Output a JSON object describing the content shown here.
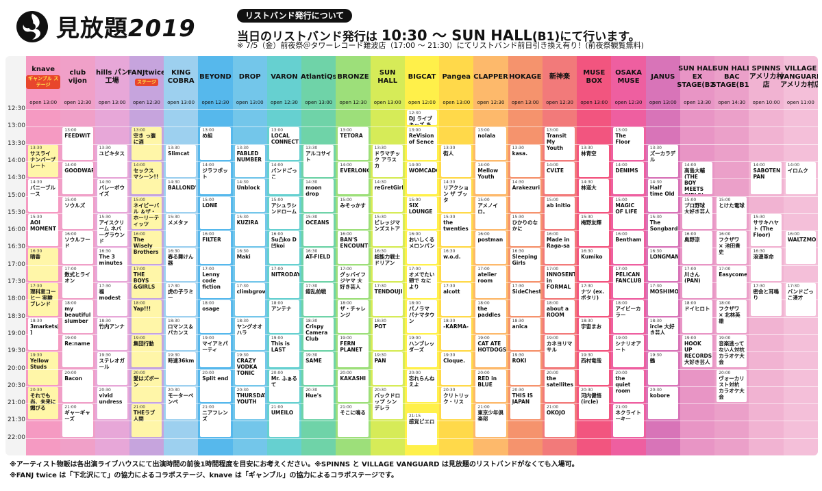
{
  "header": {
    "title_main": "見放題",
    "title_year": "2019",
    "notice_label": "リストバンド発行について",
    "notice_main_1": "当日のリストバンド発行は",
    "notice_main_time": "10:30 〜 SUN HALL",
    "notice_main_2": "(B1)にて行います。",
    "notice_sub": "※ 7/5（金）前夜祭＠タワーレコード難波店（17:00 〜 21:30）にてリストバンド前日引き換え有り！(前夜祭観覧無料)"
  },
  "time_labels": [
    "12:30",
    "13:00",
    "13:30",
    "14:00",
    "14:30",
    "15:00",
    "15:30",
    "16:00",
    "16:30",
    "17:00",
    "17:30",
    "18:00",
    "18:30",
    "19:00",
    "19:30",
    "20:00",
    "20:30",
    "21:00",
    "21:30",
    "22:00"
  ],
  "colors": {
    "knave": "#f59ac2",
    "club_vijon": "#f0a0c8",
    "hills": "#e7a7d8",
    "fanjtwice": "#c6a4dd",
    "king_cobra": "#9dd0ef",
    "beyond": "#56b8ec",
    "drop": "#73c6ea",
    "varon": "#66d0d0",
    "atlantiqs": "#6fd3a8",
    "bronze": "#9ddf7a",
    "sunhall": "#d6eb58",
    "bigcat": "#fff04a",
    "pangea": "#ffd94a",
    "clapper": "#fdb96b",
    "hokage": "#f5936d",
    "shinkaraku": "#f27a7a",
    "musebox": "#f2557f",
    "osakamuse": "#ee5fa0",
    "janus": "#d874b8",
    "sunhall_ex": "#e895c5",
    "sunhall_bac": "#eba0c9",
    "spinns": "#f1b3d2",
    "village": "#f4bfd9"
  },
  "columns": [
    {
      "key": "knave",
      "name": "knave",
      "badge": "ギャンブル ステージ",
      "open": "open 13:00",
      "acts": [
        [
          "13:30",
          "サスライ ナンバープレート",
          1
        ],
        [
          "14:30",
          "バニーブルース",
          0
        ],
        [
          "15:30",
          "AOI MOMENT",
          0
        ],
        [
          "16:30",
          "晴香",
          1
        ],
        [
          "17:30",
          "理科室コーヒー 実験ブレンド",
          1
        ],
        [
          "18:30",
          "3markets[ ]",
          0
        ],
        [
          "19:30",
          "Yellow Studs",
          1
        ],
        [
          "20:30",
          "それでも尚、未来に媚びる",
          1
        ]
      ]
    },
    {
      "key": "club_vijon",
      "name": "club vijon",
      "badge": "",
      "open": "open 12:30",
      "acts": [
        [
          "13:00",
          "FEEDWIT",
          0
        ],
        [
          "14:00",
          "GOODWARP",
          0
        ],
        [
          "15:00",
          "ソウルズ",
          0
        ],
        [
          "16:00",
          "ソウルフード",
          0
        ],
        [
          "17:00",
          "数式とライオン",
          0
        ],
        [
          "18:00",
          "my beautiful slumber",
          0
        ],
        [
          "19:00",
          "Re:name",
          0
        ],
        [
          "20:00",
          "Bacon",
          0
        ],
        [
          "21:00",
          "ギャーギャーズ",
          0
        ]
      ]
    },
    {
      "key": "hills",
      "name": "hills パン工場",
      "badge": "",
      "open": "open 13:00",
      "acts": [
        [
          "13:30",
          "ユビキタス",
          0
        ],
        [
          "14:30",
          "バレーボウイズ",
          0
        ],
        [
          "15:30",
          "アイスクリーム ネバーグラウンド",
          0
        ],
        [
          "16:30",
          "The 3 minutes",
          0
        ],
        [
          "17:30",
          "福modest",
          0
        ],
        [
          "18:30",
          "竹内アンナ",
          0
        ],
        [
          "19:30",
          "ステレオガール",
          0
        ],
        [
          "20:30",
          "vivid undress",
          0
        ]
      ]
    },
    {
      "key": "fanjtwice",
      "name": "FANJtwice",
      "badge": "ステージ",
      "open": "open 12:30",
      "acts": [
        [
          "13:00",
          "空き っ腹に酒",
          1
        ],
        [
          "14:00",
          "セックス マシーン!!",
          1
        ],
        [
          "15:00",
          "ネイビーバル ＆ザ・ホーリーティッツ",
          1
        ],
        [
          "16:00",
          "The Wisely Brothers",
          1
        ],
        [
          "17:00",
          "THE BOYS &GIRLS",
          1
        ],
        [
          "18:00",
          "Yap!!!",
          1
        ],
        [
          "19:00",
          "集団行動",
          1
        ],
        [
          "20:00",
          "愛はズボーン",
          1
        ],
        [
          "21:00",
          "THEラブ人間",
          1
        ]
      ]
    },
    {
      "key": "king_cobra",
      "name": "KING COBRA",
      "badge": "",
      "open": "open 13:00",
      "acts": [
        [
          "13:30",
          "Slimcat",
          0
        ],
        [
          "14:30",
          "BALLOND'OR",
          0
        ],
        [
          "15:30",
          "メメタァ",
          0
        ],
        [
          "16:30",
          "春る舞けん器",
          0
        ],
        [
          "17:30",
          "虎の子ラミー",
          0
        ],
        [
          "18:30",
          "ロマンス＆パカンス",
          0
        ],
        [
          "19:30",
          "時速36km",
          0
        ],
        [
          "20:30",
          "モーターベンベ",
          0
        ]
      ]
    },
    {
      "key": "beyond",
      "name": "BEYOND",
      "badge": "",
      "open": "open 12:30",
      "acts": [
        [
          "13:00",
          "め組",
          0
        ],
        [
          "14:00",
          "ジラフポット",
          0
        ],
        [
          "15:00",
          "LONE",
          0
        ],
        [
          "16:00",
          "FILTER",
          0
        ],
        [
          "17:00",
          "Lenny code fiction",
          0
        ],
        [
          "18:00",
          "osage",
          0
        ],
        [
          "19:00",
          "マイアミパーティ",
          0
        ],
        [
          "20:00",
          "Split end",
          0
        ],
        [
          "21:00",
          "ニアフレンズ",
          0
        ]
      ]
    },
    {
      "key": "drop",
      "name": "DROP",
      "badge": "",
      "open": "open 13:00",
      "acts": [
        [
          "13:30",
          "FABLED NUMBER",
          0
        ],
        [
          "14:30",
          "Unblock",
          0
        ],
        [
          "15:30",
          "KUZIRA",
          0
        ],
        [
          "16:30",
          "Maki",
          0
        ],
        [
          "17:30",
          "climbgrow",
          0
        ],
        [
          "18:30",
          "ヤングオオハラ",
          0
        ],
        [
          "19:30",
          "CRAZY VODKA TONIC",
          0
        ],
        [
          "20:30",
          "THURSDAY'S YOUTH",
          0
        ]
      ]
    },
    {
      "key": "varon",
      "name": "VARON",
      "badge": "",
      "open": "open 12:30",
      "acts": [
        [
          "13:00",
          "LOCAL CONNECT",
          0
        ],
        [
          "14:00",
          "バンドごっこ",
          0
        ],
        [
          "15:00",
          "アシュラシンドローム",
          0
        ],
        [
          "16:00",
          "Su凸ko D凹koi",
          0
        ],
        [
          "17:00",
          "NITRODAY",
          0
        ],
        [
          "18:00",
          "アンテナ",
          0
        ],
        [
          "19:00",
          "This is LAST",
          0
        ],
        [
          "20:00",
          "Mr. ふぁるて",
          0
        ],
        [
          "21:00",
          "UMEILO",
          0
        ]
      ]
    },
    {
      "key": "atlantiqs",
      "name": "AtlantiQs",
      "badge": "",
      "open": "open 13:00",
      "acts": [
        [
          "13:30",
          "アルコサイト",
          0
        ],
        [
          "14:30",
          "moon drop",
          0
        ],
        [
          "15:30",
          "OCEANS",
          0
        ],
        [
          "16:30",
          "AT-FIELD",
          0
        ],
        [
          "17:30",
          "錯乱前戦",
          0
        ],
        [
          "18:30",
          "Crispy Camera Club",
          0
        ],
        [
          "19:30",
          "SAME",
          0
        ],
        [
          "20:30",
          "Hue's",
          0
        ]
      ]
    },
    {
      "key": "bronze",
      "name": "BRONZE",
      "badge": "",
      "open": "open 12:30",
      "acts": [
        [
          "13:00",
          "TETORA",
          0
        ],
        [
          "14:00",
          "EVERLONG",
          0
        ],
        [
          "15:00",
          "みそっかす",
          0
        ],
        [
          "16:00",
          "BAN'S ENCOUNTER",
          0
        ],
        [
          "17:00",
          "グッバイフジヤマ 大好き芸人",
          0
        ],
        [
          "18:00",
          "ザ・チャレンジ",
          0
        ],
        [
          "19:00",
          "FERN PLANET",
          0
        ],
        [
          "20:00",
          "KAKASHI",
          0
        ],
        [
          "21:00",
          "そこに鳴る",
          0
        ]
      ]
    },
    {
      "key": "sunhall",
      "name": "SUN HALL",
      "badge": "",
      "open": "open 13:00",
      "acts": [
        [
          "13:30",
          "ドラマチック アラスカ",
          0
        ],
        [
          "14:30",
          "reGretGirl",
          0
        ],
        [
          "15:30",
          "ビレッジマンズストア",
          0
        ],
        [
          "16:30",
          "超能力戦士 ドリアン",
          0
        ],
        [
          "17:30",
          "TENDOUJI",
          0
        ],
        [
          "18:30",
          "POT",
          0
        ],
        [
          "19:30",
          "PAN",
          0
        ],
        [
          "20:30",
          "バックドロップ シンデレラ",
          0
        ]
      ]
    },
    {
      "key": "bigcat",
      "name": "BIGCAT",
      "badge": "",
      "open": "open 12:00",
      "acts": [
        [
          "12:30",
          "DJ ライブキッズ あるある中の人",
          0
        ],
        [
          "13:00",
          "ReVision of Sence",
          0
        ],
        [
          "14:00",
          "WOMCADOLE",
          0
        ],
        [
          "15:00",
          "SIX LOUNGE",
          0
        ],
        [
          "16:00",
          "おいしくる メロンパン",
          0
        ],
        [
          "17:00",
          "オメでたい頭で なにより",
          0
        ],
        [
          "18:00",
          "パノラマ パナマタウン",
          0
        ],
        [
          "19:00",
          "ハンブレッダーズ",
          0
        ],
        [
          "20:00",
          "忘れらんねえよ",
          0
        ],
        [
          "21:15",
          "感覚ピエロ",
          0
        ]
      ]
    },
    {
      "key": "pangea",
      "name": "Pangea",
      "badge": "",
      "open": "open 13:00",
      "acts": [
        [
          "13:30",
          "街人",
          0
        ],
        [
          "14:30",
          "リアクション ザ ブッタ",
          0
        ],
        [
          "15:30",
          "the twenties",
          0
        ],
        [
          "16:30",
          "w.o.d.",
          0
        ],
        [
          "17:30",
          "alcott",
          0
        ],
        [
          "18:30",
          "-KARMA-",
          0
        ],
        [
          "19:30",
          "Cloque.",
          0
        ],
        [
          "20:30",
          "クリトリック・リス",
          0
        ]
      ]
    },
    {
      "key": "clapper",
      "name": "CLAPPER",
      "badge": "",
      "open": "open 12:30",
      "acts": [
        [
          "13:00",
          "nolala",
          0
        ],
        [
          "14:00",
          "Mellow Youth",
          0
        ],
        [
          "15:00",
          "アメノイロ。",
          0
        ],
        [
          "16:00",
          "postman",
          0
        ],
        [
          "17:00",
          "atelier room",
          0
        ],
        [
          "18:00",
          "the paddles",
          0
        ],
        [
          "19:00",
          "CAT ATE HOTDOGS",
          0
        ],
        [
          "20:00",
          "RED in BLUE",
          0
        ],
        [
          "21:00",
          "東京少年倶楽部",
          0
        ]
      ]
    },
    {
      "key": "hokage",
      "name": "HOKAGE",
      "badge": "",
      "open": "open 13:00",
      "acts": [
        [
          "13:30",
          "kasa.",
          0
        ],
        [
          "14:30",
          "Arakezuri",
          0
        ],
        [
          "15:30",
          "ひかりのなかに",
          0
        ],
        [
          "16:30",
          "Sleeping Girls",
          0
        ],
        [
          "17:30",
          "SideChest",
          0
        ],
        [
          "18:30",
          "anica",
          0
        ],
        [
          "19:30",
          "ROKI",
          0
        ],
        [
          "20:30",
          "THIS IS JAPAN",
          0
        ]
      ]
    },
    {
      "key": "shinkaraku",
      "name": "新神楽",
      "badge": "",
      "open": "open 12:30",
      "acts": [
        [
          "13:00",
          "Transit My Youth",
          0
        ],
        [
          "14:00",
          "CVLTE",
          0
        ],
        [
          "15:00",
          "ab initio",
          0
        ],
        [
          "16:00",
          "Made in Raga-sa",
          0
        ],
        [
          "17:00",
          "INNOSENT in FORMAL",
          0
        ],
        [
          "18:00",
          "about a ROOM",
          0
        ],
        [
          "19:00",
          "カネヨリマサル",
          0
        ],
        [
          "20:00",
          "the satellites",
          0
        ],
        [
          "21:00",
          "OKOJO",
          0
        ]
      ]
    },
    {
      "key": "musebox",
      "name": "MUSE BOX",
      "badge": "",
      "open": "open 13:00",
      "acts": [
        [
          "13:30",
          "林青空",
          0
        ],
        [
          "14:30",
          "林道大",
          0
        ],
        [
          "15:30",
          "梅野友輝",
          0
        ],
        [
          "16:30",
          "Kumiko",
          0
        ],
        [
          "17:30",
          "ナツ (ex. ポタリ)",
          0
        ],
        [
          "18:30",
          "宇宙まお",
          0
        ],
        [
          "19:30",
          "西村竜哉",
          0
        ],
        [
          "20:30",
          "河内健悟 (ircle)",
          0
        ]
      ]
    },
    {
      "key": "osakamuse",
      "name": "OSAKA MUSE",
      "badge": "",
      "open": "open 12:30",
      "acts": [
        [
          "13:00",
          "The Floor",
          0
        ],
        [
          "14:00",
          "DENIMS",
          0
        ],
        [
          "15:00",
          "MAGIC OF LIFE",
          0
        ],
        [
          "16:00",
          "Bentham",
          0
        ],
        [
          "17:00",
          "PELICAN FANCLUB",
          0
        ],
        [
          "18:00",
          "アイビーカラー",
          0
        ],
        [
          "19:00",
          "シナリオアート",
          0
        ],
        [
          "20:00",
          "the quiet room",
          0
        ],
        [
          "21:00",
          "ネクライトーキー",
          0
        ]
      ]
    },
    {
      "key": "janus",
      "name": "JANUS",
      "badge": "",
      "open": "open 13:00",
      "acts": [
        [
          "13:30",
          "ズーカラデル",
          0
        ],
        [
          "14:30",
          "Half time Old",
          0
        ],
        [
          "15:30",
          "The Songbards",
          0
        ],
        [
          "16:30",
          "LONGMAN",
          0
        ],
        [
          "17:30",
          "MOSHIMO",
          0
        ],
        [
          "18:30",
          "ircle 大好き芸人",
          0
        ],
        [
          "19:30",
          "鶴",
          0
        ],
        [
          "20:30",
          "kobore",
          0
        ]
      ]
    },
    {
      "key": "sunhall_ex",
      "name": "SUN HALL EX STAGE(B2)",
      "badge": "",
      "open": "open 13:30",
      "acts": [
        [
          "14:00",
          "高島大輔 (THE BOY MEETS GIRLS)",
          0
        ],
        [
          "15:00",
          "プロ野球 大好き芸人",
          0
        ],
        [
          "16:00",
          "奥野涼",
          0
        ],
        [
          "17:00",
          "川さん (PAN)",
          0
        ],
        [
          "18:00",
          "ドイヒロト",
          0
        ],
        [
          "19:00",
          "HOOK UP RECORDS 大好き芸人",
          0
        ]
      ]
    },
    {
      "key": "sunhall_bac",
      "name": "SUN HALL BAC STAGE(B1)",
      "badge": "",
      "open": "open 14:30",
      "acts": [
        [
          "15:00",
          "とけた電球",
          0
        ],
        [
          "16:00",
          "フクザワ × 池田貴史",
          0
        ],
        [
          "17:00",
          "Easycome",
          0
        ],
        [
          "18:00",
          "フクザワ × 北林英雄",
          0
        ],
        [
          "19:00",
          "音楽逃ってない人対抗 カラオケ大会",
          0
        ],
        [
          "20:00",
          "ヴォーカリスト対抗 カラオケ大会",
          0
        ]
      ]
    },
    {
      "key": "spinns",
      "name": "SPINNS アメリカ村店",
      "badge": "",
      "open": "open 10:00",
      "acts": [
        [
          "14:00",
          "SABOTEN PAN",
          0
        ],
        [
          "15:30",
          "ササキハヤト (The Floor)",
          0
        ],
        [
          "16:30",
          "浪漫革命",
          0
        ],
        [
          "17:30",
          "密会と耳鳴り",
          0
        ]
      ]
    },
    {
      "key": "village",
      "name": "VILLAGE VANGUARD アメリカ村店",
      "badge": "",
      "open": "open 11:00",
      "acts": [
        [
          "14:00",
          "イロムク",
          0
        ],
        [
          "16:00",
          "WALTZMORE",
          0
        ],
        [
          "17:30",
          "バンドごっこ漫才",
          0
        ]
      ]
    }
  ],
  "footer": {
    "line1": "※アーティスト物販は各出演ライブハウスにて出演時間の前後1時間程度を目安にお考えください。※SPINNS と VILLAGE VANGUARD は見放題のリストバンドがなくても入場可。",
    "line2": "※FANJ twice は「下北沢にて」の協力によるコラボステージ、knave は「ギャンブル」の協力によるコラボステージです。"
  }
}
